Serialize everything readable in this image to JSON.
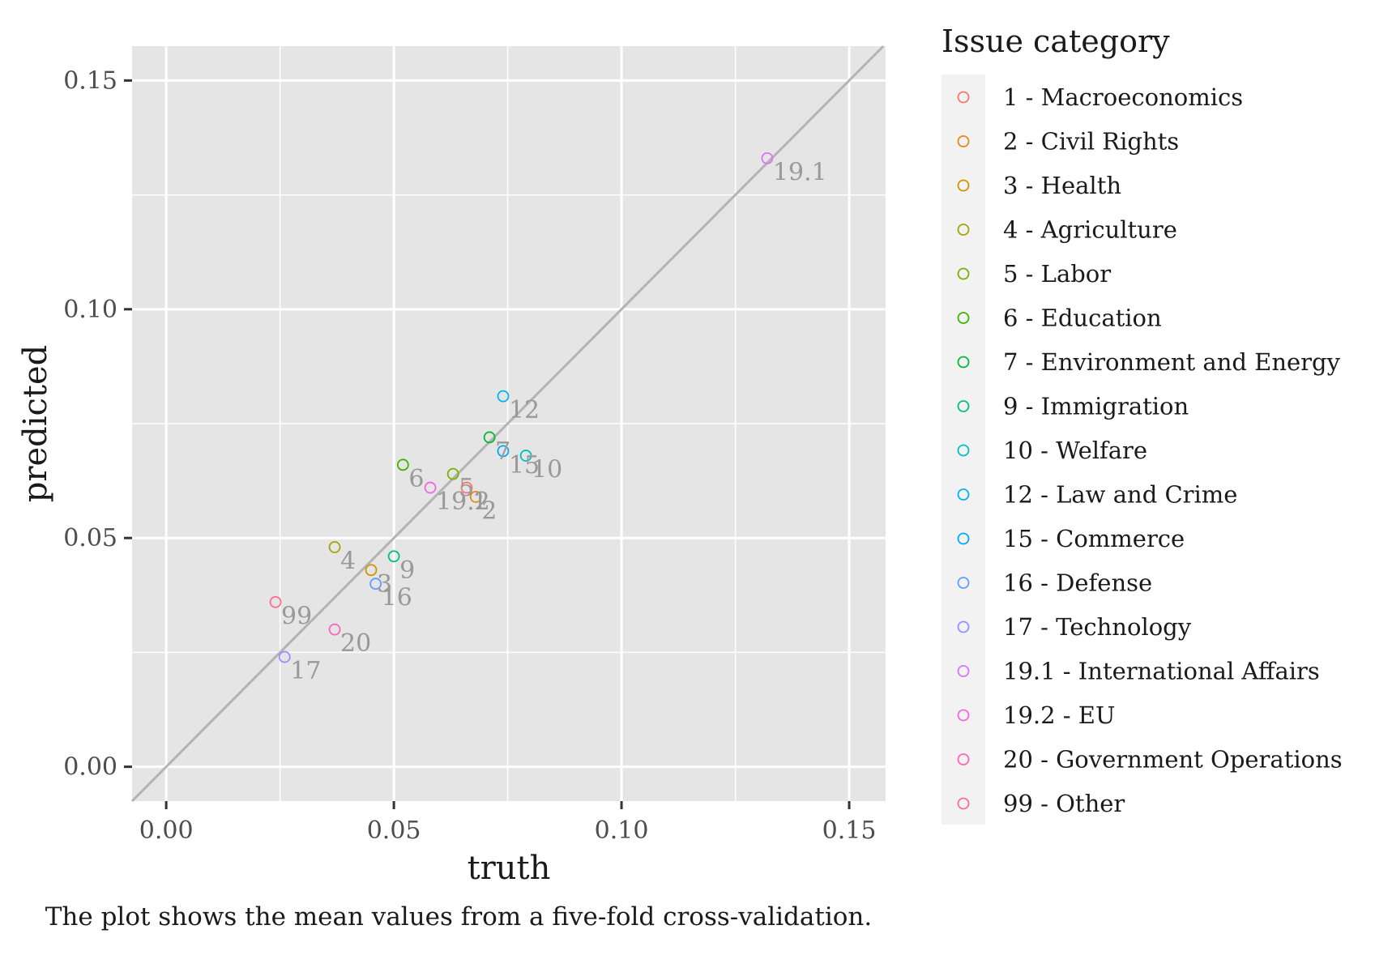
{
  "chart_data": {
    "type": "scatter",
    "xlabel": "truth",
    "ylabel": "predicted",
    "caption": "The plot shows the mean values from a five-fold cross-validation.",
    "xlim": [
      -0.0075,
      0.158
    ],
    "ylim": [
      -0.0075,
      0.1575
    ],
    "x_ticks": [
      0.0,
      0.05,
      0.1,
      0.15
    ],
    "x_tick_labels": [
      "0.00",
      "0.05",
      "0.10",
      "0.15"
    ],
    "y_ticks": [
      0.0,
      0.05,
      0.1,
      0.15
    ],
    "y_tick_labels": [
      "0.00",
      "0.05",
      "0.10",
      "0.15"
    ],
    "grid": true,
    "reference_line": "y = x",
    "legend": {
      "title": "Issue category",
      "placement": "right",
      "entries": [
        {
          "label": "1 - Macroeconomics",
          "color": "#F8766D"
        },
        {
          "label": "2 - Civil Rights",
          "color": "#E7861B"
        },
        {
          "label": "3 - Health",
          "color": "#D39200"
        },
        {
          "label": "4 - Agriculture",
          "color": "#A3A500"
        },
        {
          "label": "5 - Labor",
          "color": "#7CAE00"
        },
        {
          "label": "6 - Education",
          "color": "#39B600"
        },
        {
          "label": "7 - Environment and Energy",
          "color": "#00BA38"
        },
        {
          "label": "9 - Immigration",
          "color": "#00BF7D"
        },
        {
          "label": "10 - Welfare",
          "color": "#00BFC4"
        },
        {
          "label": "12 - Law and Crime",
          "color": "#00B4EF"
        },
        {
          "label": "15 - Commerce",
          "color": "#00A9FF"
        },
        {
          "label": "16 - Defense",
          "color": "#619CFF"
        },
        {
          "label": "17 - Technology",
          "color": "#9590FF"
        },
        {
          "label": "19.1 - International Affairs",
          "color": "#DB72FB"
        },
        {
          "label": "19.2 - EU",
          "color": "#F564E3"
        },
        {
          "label": "20 - Government Operations",
          "color": "#FF62BC"
        },
        {
          "label": "99 - Other",
          "color": "#FF6C91"
        }
      ]
    },
    "points": [
      {
        "label": "1",
        "x": 0.066,
        "y": 0.061,
        "color": "#F8766D"
      },
      {
        "label": "2",
        "x": 0.068,
        "y": 0.059,
        "color": "#E7861B"
      },
      {
        "label": "3",
        "x": 0.045,
        "y": 0.043,
        "color": "#D39200"
      },
      {
        "label": "4",
        "x": 0.037,
        "y": 0.048,
        "color": "#A3A500"
      },
      {
        "label": "5",
        "x": 0.063,
        "y": 0.064,
        "color": "#7CAE00"
      },
      {
        "label": "6",
        "x": 0.052,
        "y": 0.066,
        "color": "#39B600"
      },
      {
        "label": "7",
        "x": 0.071,
        "y": 0.072,
        "color": "#00BA38"
      },
      {
        "label": "9",
        "x": 0.05,
        "y": 0.046,
        "color": "#00BF7D"
      },
      {
        "label": "10",
        "x": 0.079,
        "y": 0.068,
        "color": "#00BFC4"
      },
      {
        "label": "12",
        "x": 0.074,
        "y": 0.081,
        "color": "#00B4EF"
      },
      {
        "label": "15",
        "x": 0.074,
        "y": 0.069,
        "color": "#00A9FF"
      },
      {
        "label": "16",
        "x": 0.046,
        "y": 0.04,
        "color": "#619CFF"
      },
      {
        "label": "17",
        "x": 0.026,
        "y": 0.024,
        "color": "#9590FF"
      },
      {
        "label": "19.1",
        "x": 0.132,
        "y": 0.133,
        "color": "#DB72FB"
      },
      {
        "label": "19.2",
        "x": 0.058,
        "y": 0.061,
        "color": "#F564E3"
      },
      {
        "label": "20",
        "x": 0.037,
        "y": 0.03,
        "color": "#FF62BC"
      },
      {
        "label": "99",
        "x": 0.024,
        "y": 0.036,
        "color": "#FF6C91"
      }
    ]
  }
}
